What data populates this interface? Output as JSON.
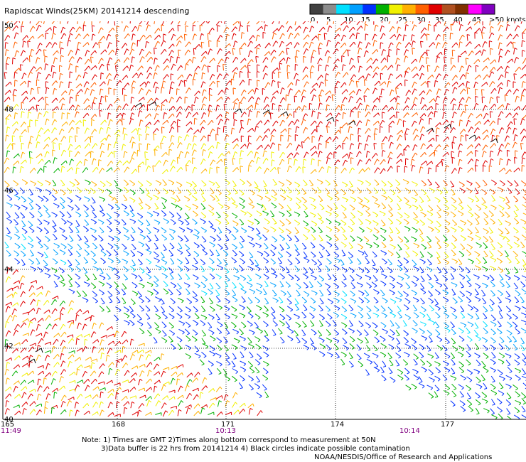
{
  "title": "Rapidscat Winds(25KM) 20141214 descending",
  "legend": {
    "labels": [
      "0",
      "5",
      "10",
      "15",
      "20",
      "25",
      "30",
      "35",
      "40",
      "45",
      ">50 knots"
    ],
    "colors": [
      "#404040",
      "#8c8c8c",
      "#00e0ff",
      "#00a0ff",
      "#0030ff",
      "#00b000",
      "#f0f000",
      "#ffb000",
      "#ff6000",
      "#e00000",
      "#b05020",
      "#803000",
      "#ff00ff",
      "#8000c0"
    ]
  },
  "map": {
    "lat_labels": [
      "50",
      "48",
      "46",
      "44",
      "42",
      "40"
    ],
    "lon_labels": [
      "165",
      "168",
      "171",
      "174",
      "177"
    ],
    "time_labels": [
      "11:49",
      "10:13",
      "10:14"
    ],
    "time_color": "#800080",
    "gridlines": "dotted"
  },
  "notes": {
    "line1": "Note: 1) Times are GMT 2)Times along bottom correspond to measurement at 50N",
    "line2": "3)Data buffer is 22 hrs from 20141214 4) Black circles indicate possible contamination",
    "line3": "NOAA/NESDIS/Office of Research and Applications"
  }
}
